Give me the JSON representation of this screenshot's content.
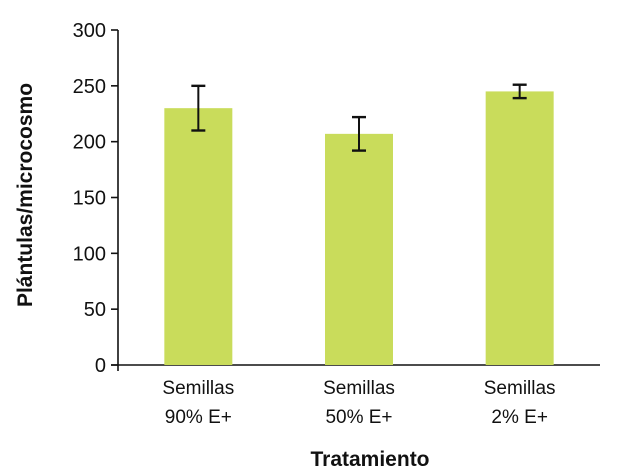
{
  "chart_data": {
    "type": "bar",
    "categories": [
      [
        "Semillas",
        "90% E+"
      ],
      [
        "Semillas",
        "50% E+"
      ],
      [
        "Semillas",
        "2% E+"
      ]
    ],
    "values": [
      230,
      207,
      245
    ],
    "error": [
      20,
      15,
      6
    ],
    "xlabel": "Tratamiento",
    "ylabel": "Plántulas/microcosmo",
    "ylim": [
      0,
      300
    ],
    "yticks": [
      0,
      50,
      100,
      150,
      200,
      250,
      300
    ],
    "grid": false,
    "colors": {
      "bar": "#c9dc5b",
      "axis": "#111111",
      "error": "#111111"
    }
  }
}
